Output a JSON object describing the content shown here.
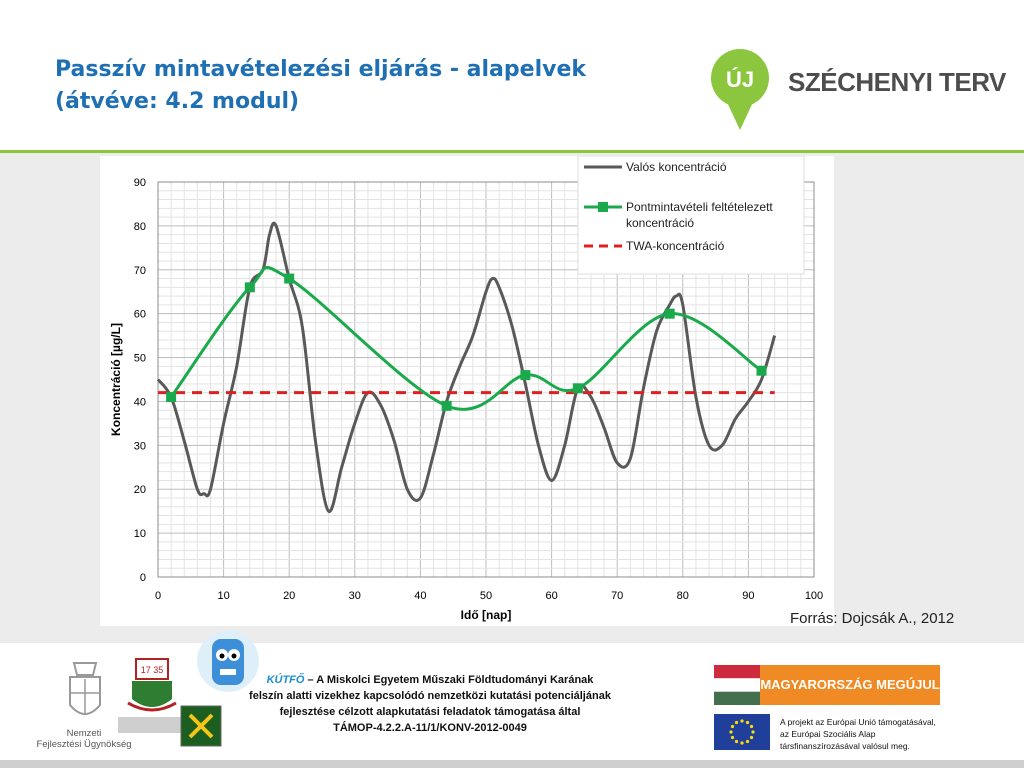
{
  "slide": {
    "title_line1": "Passzív mintavételezési eljárás - alapelvek",
    "title_line2": "(átvéve: 4.2 modul)",
    "logo_badge": "ÚJ",
    "logo_text": "SZÉCHENYI TERV",
    "source": "Forrás: Dojcsák A., 2012"
  },
  "footer": {
    "brand": "KÚTFŐ",
    "line1_rest": " – A Miskolci Egyetem Műszaki Földtudományi Karának",
    "line2": "felszín alatti vizekhez kapcsolódó nemzetközi kutatási potenciáljának",
    "line3": "fejlesztése célzott alapkutatási feladatok támogatása által",
    "line4": "TÁMOP-4.2.2.A-11/1/KONV-2012-0049",
    "nfu_line1": "Nemzeti",
    "nfu_line2": "Fejlesztési Ügynökség",
    "crest_year": "17 35",
    "hu_banner": "MAGYARORSZÁG MEGÚJUL",
    "eu_line1": "A projekt az Európai Unió támogatásával,",
    "eu_line2": "az Európai Szociális Alap",
    "eu_line3": "társfinanszírozásával valósul meg."
  },
  "colors": {
    "title": "#1f6fb3",
    "accent_green": "#8cc63f",
    "actual_line": "#595959",
    "point_line": "#1aaa4b",
    "twa_line": "#e02020"
  },
  "chart_data": {
    "type": "line",
    "xlabel": "Idő [nap]",
    "ylabel": "Koncentráció [µg/L]",
    "xlim": [
      0,
      100
    ],
    "ylim": [
      0,
      90
    ],
    "xticks": [
      0,
      10,
      20,
      30,
      40,
      50,
      60,
      70,
      80,
      90,
      100
    ],
    "yticks": [
      0,
      10,
      20,
      30,
      40,
      50,
      60,
      70,
      80,
      90
    ],
    "grid": true,
    "legend_position": "top-right",
    "series": [
      {
        "name": "Valós koncentráció",
        "style": "smooth-solid-gray",
        "x": [
          0,
          2,
          4,
          6,
          7,
          8,
          10,
          12,
          14,
          16,
          17,
          18,
          20,
          22,
          24,
          26,
          28,
          30,
          32,
          34,
          36,
          38,
          40,
          42,
          44,
          46,
          48,
          50,
          51,
          52,
          54,
          56,
          58,
          60,
          62,
          64,
          66,
          68,
          70,
          72,
          74,
          76,
          78,
          79,
          80,
          82,
          84,
          86,
          88,
          90,
          92,
          94
        ],
        "y": [
          45,
          41,
          31,
          20,
          19,
          20,
          35,
          48,
          66,
          70,
          78,
          80,
          68,
          57,
          31,
          15,
          25,
          35,
          42,
          39,
          31,
          20,
          18,
          28,
          40,
          48,
          55,
          65,
          68,
          66,
          57,
          44,
          30,
          22,
          30,
          43,
          41,
          34,
          26,
          27,
          43,
          56,
          62,
          64,
          62,
          41,
          30,
          30,
          36,
          40,
          45,
          55
        ]
      },
      {
        "name": "Pontmintavételi feltételezett koncentráció",
        "style": "smooth-green-square-markers",
        "x": [
          2,
          14,
          20,
          44,
          56,
          64,
          78,
          92
        ],
        "y": [
          41,
          66,
          68,
          39,
          46,
          43,
          60,
          47
        ]
      },
      {
        "name": "TWA-koncentráció",
        "style": "dashed-red",
        "x": [
          0,
          94
        ],
        "y": [
          42,
          42
        ]
      }
    ]
  }
}
